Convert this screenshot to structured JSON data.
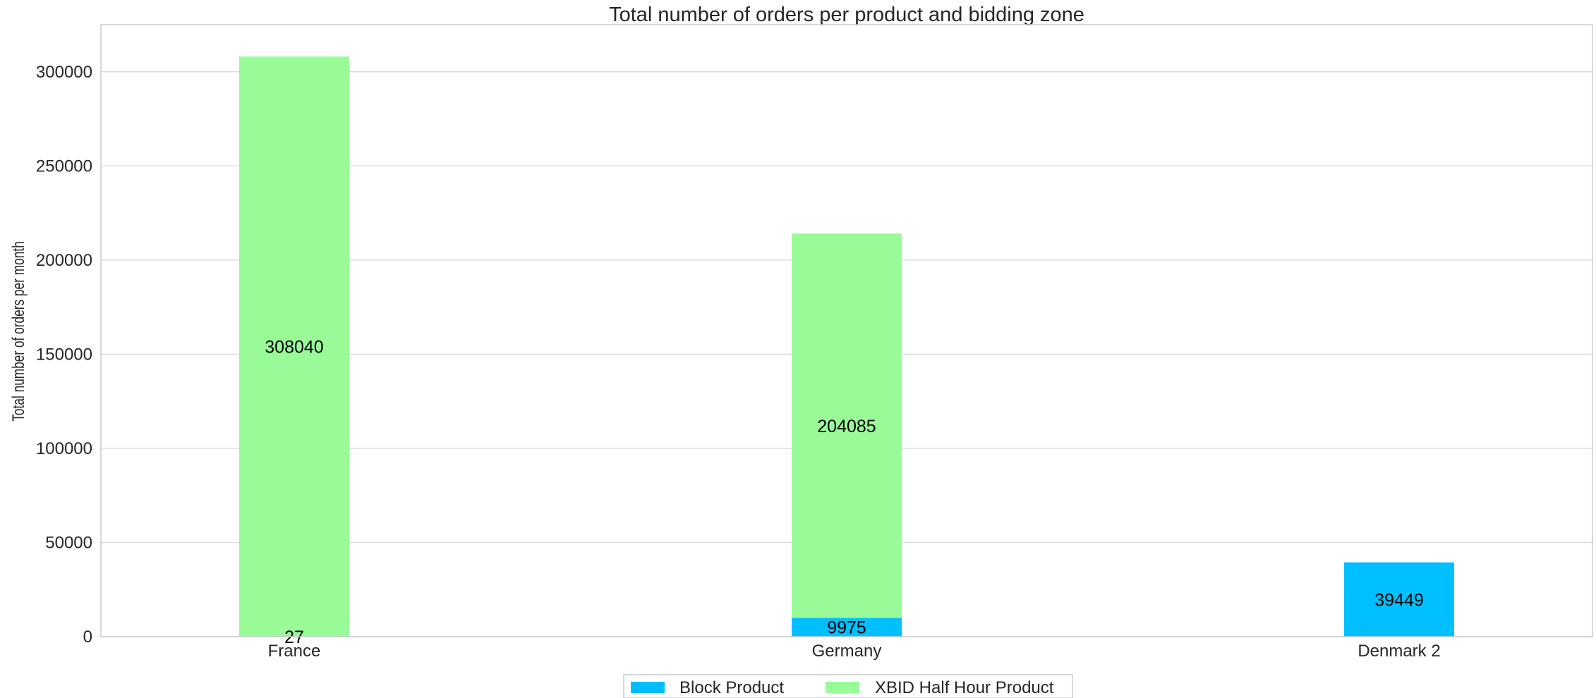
{
  "chart_data": {
    "type": "bar",
    "stacked": true,
    "title": "Total number of orders per product and bidding zone",
    "xlabel": "",
    "ylabel": "Total number of orders per month",
    "categories": [
      "France",
      "Germany",
      "Denmark 2"
    ],
    "series": [
      {
        "name": "Block Product",
        "color": "#00BFFF",
        "values": [
          27,
          9975,
          39449
        ]
      },
      {
        "name": "XBID Half Hour Product",
        "color": "#98FB98",
        "values": [
          308040,
          204085,
          0
        ]
      }
    ],
    "ylim": [
      0,
      325000
    ],
    "yticks": [
      0,
      50000,
      100000,
      150000,
      200000,
      250000,
      300000
    ],
    "grid": true,
    "legend_position": "bottom-center"
  }
}
